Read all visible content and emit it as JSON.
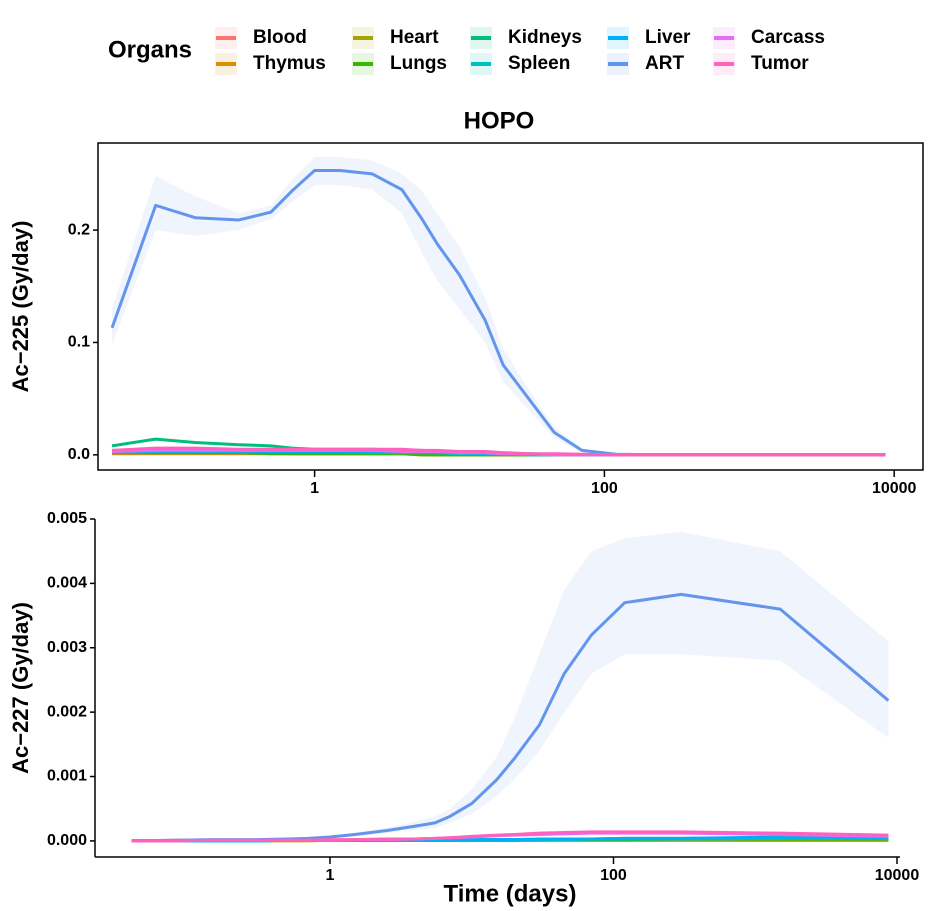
{
  "chart_data": [
    {
      "type": "line",
      "title": "HOPO",
      "y_label": "Ac−225 (Gy/day)",
      "legend_title": "Organs",
      "xscale": "log",
      "ribbon": true,
      "x": [
        0.04,
        0.08,
        0.15,
        0.3,
        0.5,
        0.7,
        1,
        1.5,
        2.5,
        4,
        5.5,
        7,
        10,
        15,
        20,
        30,
        45,
        70,
        120,
        300,
        1500,
        8700
      ],
      "xlim": [
        0.032,
        15800
      ],
      "xticks": [
        1,
        100,
        10000
      ],
      "ylim": [
        -0.0135,
        0.2775
      ],
      "yticks": [
        {
          "value": 0,
          "label": "0.0"
        },
        0.1,
        0.2
      ],
      "series": [
        {
          "name": "Blood",
          "color": "#F8766D",
          "values": [
            0.004,
            0.004,
            0.003,
            0.003,
            0.003,
            0.002,
            0.002,
            0.002,
            0.001,
            0.001,
            0.001,
            0.001,
            0.001,
            0,
            0,
            0,
            0,
            0,
            0,
            0,
            0,
            0
          ]
        },
        {
          "name": "Thymus",
          "color": "#D89000",
          "values": [
            0.001,
            0.001,
            0.001,
            0.001,
            0.001,
            0.001,
            0.001,
            0.001,
            0.001,
            0.001,
            0,
            0,
            0,
            0,
            0,
            0,
            0,
            0,
            0,
            0,
            0,
            0
          ]
        },
        {
          "name": "Heart",
          "color": "#A3A500",
          "values": [
            0.002,
            0.002,
            0.002,
            0.002,
            0.002,
            0.001,
            0.001,
            0.001,
            0.001,
            0.001,
            0.001,
            0,
            0,
            0,
            0,
            0,
            0,
            0,
            0,
            0,
            0,
            0
          ]
        },
        {
          "name": "Lungs",
          "color": "#39B600",
          "values": [
            0.002,
            0.002,
            0.002,
            0.002,
            0.001,
            0.001,
            0.001,
            0.001,
            0.001,
            0.001,
            0,
            0,
            0,
            0,
            0,
            0,
            0,
            0,
            0,
            0,
            0,
            0
          ]
        },
        {
          "name": "Kidneys",
          "color": "#00BF7D",
          "values": [
            0.008,
            0.014,
            0.011,
            0.009,
            0.008,
            0.006,
            0.005,
            0.005,
            0.005,
            0.004,
            0.004,
            0.003,
            0.003,
            0.002,
            0.001,
            0.001,
            0.0005,
            0,
            0,
            0,
            0,
            0
          ]
        },
        {
          "name": "Spleen",
          "color": "#00BFC4",
          "values": [
            0.002,
            0.003,
            0.003,
            0.003,
            0.003,
            0.003,
            0.003,
            0.003,
            0.002,
            0.002,
            0.002,
            0.002,
            0.001,
            0.001,
            0.001,
            0,
            0,
            0,
            0,
            0,
            0,
            0
          ]
        },
        {
          "name": "Liver",
          "color": "#00B0F6",
          "values": [
            0.002,
            0.003,
            0.003,
            0.003,
            0.003,
            0.003,
            0.003,
            0.003,
            0.003,
            0.003,
            0.002,
            0.002,
            0.002,
            0.001,
            0.001,
            0.001,
            0,
            0,
            0,
            0,
            0,
            0
          ]
        },
        {
          "name": "ART",
          "color": "#6495ED",
          "values": [
            0.113,
            0.222,
            0.211,
            0.209,
            0.216,
            0.235,
            0.253,
            0.253,
            0.25,
            0.236,
            0.21,
            0.188,
            0.16,
            0.12,
            0.08,
            0.05,
            0.02,
            0.004,
            0.0005,
            0,
            0,
            0
          ],
          "upper": [
            0.13,
            0.248,
            0.23,
            0.215,
            0.222,
            0.245,
            0.265,
            0.265,
            0.262,
            0.25,
            0.235,
            0.215,
            0.185,
            0.14,
            0.095,
            0.058,
            0.025,
            0.006,
            0.001,
            0,
            0,
            0
          ],
          "lower": [
            0.098,
            0.2,
            0.195,
            0.2,
            0.21,
            0.225,
            0.24,
            0.24,
            0.236,
            0.215,
            0.18,
            0.155,
            0.13,
            0.1,
            0.065,
            0.04,
            0.015,
            0.002,
            0,
            0,
            0,
            0
          ]
        },
        {
          "name": "Carcass",
          "color": "#E76BF3",
          "values": [
            0.003,
            0.004,
            0.004,
            0.004,
            0.004,
            0.004,
            0.004,
            0.004,
            0.004,
            0.003,
            0.003,
            0.003,
            0.002,
            0.002,
            0.001,
            0.001,
            0,
            0,
            0,
            0,
            0,
            0
          ]
        },
        {
          "name": "Tumor",
          "color": "#FF62BC",
          "values": [
            0.004,
            0.006,
            0.006,
            0.005,
            0.005,
            0.005,
            0.005,
            0.005,
            0.005,
            0.005,
            0.004,
            0.004,
            0.003,
            0.003,
            0.002,
            0.001,
            0.001,
            0.0005,
            0,
            0,
            0,
            0
          ]
        }
      ]
    },
    {
      "type": "line",
      "y_label": "Ac−227 (Gy/day)",
      "x_label": "Time (days)",
      "xscale": "log",
      "ribbon": true,
      "x": [
        0.04,
        0.08,
        0.15,
        0.3,
        0.5,
        0.7,
        1,
        1.5,
        2.5,
        4,
        5.5,
        7,
        10,
        15,
        20,
        30,
        45,
        70,
        120,
        300,
        1500,
        8700
      ],
      "xlim": [
        0.022,
        10500
      ],
      "xticks": [
        1,
        100,
        10000
      ],
      "ylim": [
        -0.00025,
        0.005
      ],
      "yticks": [
        {
          "value": 0,
          "label": "0.000"
        },
        0.001,
        0.002,
        0.003,
        0.004,
        0.005
      ],
      "series": [
        {
          "name": "Blood",
          "color": "#F8766D",
          "values": [
            0,
            1e-05,
            1e-05,
            1e-05,
            1e-05,
            1e-05,
            1e-05,
            1e-05,
            1e-05,
            1e-05,
            1e-05,
            1e-05,
            1e-05,
            1e-05,
            1e-05,
            1e-05,
            1e-05,
            1e-05,
            1e-05,
            1e-05,
            1e-05,
            1e-05
          ]
        },
        {
          "name": "Thymus",
          "color": "#D89000",
          "values": [
            0,
            0,
            1e-05,
            1e-05,
            1e-05,
            1e-05,
            1e-05,
            1e-05,
            1e-05,
            1e-05,
            1e-05,
            1e-05,
            1e-05,
            1e-05,
            1e-05,
            1e-05,
            1e-05,
            1e-05,
            1e-05,
            1e-05,
            1e-05,
            1e-05
          ]
        },
        {
          "name": "Heart",
          "color": "#A3A500",
          "values": [
            0,
            0,
            0,
            0,
            0,
            0,
            1e-05,
            1e-05,
            1e-05,
            1e-05,
            1e-05,
            1e-05,
            1e-05,
            1e-05,
            1e-05,
            1e-05,
            2e-05,
            2e-05,
            2e-05,
            2e-05,
            2e-05,
            2e-05
          ]
        },
        {
          "name": "Lungs",
          "color": "#39B600",
          "values": [
            0,
            0,
            0,
            1e-05,
            1e-05,
            1e-05,
            1e-05,
            1e-05,
            1e-05,
            1e-05,
            1e-05,
            1e-05,
            1e-05,
            1e-05,
            1e-05,
            2e-05,
            2e-05,
            2e-05,
            2e-05,
            3e-05,
            3e-05,
            3e-05
          ]
        },
        {
          "name": "Kidneys",
          "color": "#00BF7D",
          "values": [
            0,
            0,
            0,
            0,
            1e-05,
            1e-05,
            1e-05,
            1e-05,
            1e-05,
            1e-05,
            1e-05,
            1e-05,
            2e-05,
            2e-05,
            2e-05,
            2e-05,
            3e-05,
            3e-05,
            4e-05,
            4e-05,
            5e-05,
            5e-05
          ]
        },
        {
          "name": "Spleen",
          "color": "#00BFC4",
          "values": [
            0,
            0,
            0,
            0,
            1e-05,
            1e-05,
            1e-05,
            1e-05,
            1e-05,
            1e-05,
            1e-05,
            1e-05,
            2e-05,
            2e-05,
            2e-05,
            2e-05,
            2e-05,
            3e-05,
            3e-05,
            3e-05,
            4e-05,
            4e-05
          ]
        },
        {
          "name": "Liver",
          "color": "#00B0F6",
          "values": [
            0,
            0,
            0,
            0,
            1e-05,
            1e-05,
            1e-05,
            1e-05,
            1e-05,
            1e-05,
            1e-05,
            2e-05,
            2e-05,
            2e-05,
            2e-05,
            3e-05,
            3e-05,
            3e-05,
            4e-05,
            4e-05,
            6e-05,
            5e-05
          ]
        },
        {
          "name": "ART",
          "color": "#6495ED",
          "values": [
            0,
            1e-05,
            2e-05,
            2e-05,
            3e-05,
            4e-05,
            6e-05,
            0.0001,
            0.00016,
            0.00023,
            0.00028,
            0.00038,
            0.00058,
            0.00095,
            0.00128,
            0.0018,
            0.0026,
            0.0032,
            0.0037,
            0.00383,
            0.0036,
            0.00218
          ],
          "upper": [
            0,
            1e-05,
            2e-05,
            3e-05,
            4e-05,
            5e-05,
            8e-05,
            0.00013,
            0.0002,
            0.0003,
            0.00038,
            0.0005,
            0.0008,
            0.0013,
            0.0019,
            0.0029,
            0.0039,
            0.0045,
            0.0047,
            0.0048,
            0.0045,
            0.0031
          ],
          "lower": [
            0,
            0,
            1e-05,
            1e-05,
            2e-05,
            3e-05,
            4e-05,
            7e-05,
            0.00012,
            0.00017,
            0.0002,
            0.00028,
            0.00042,
            0.0007,
            0.00095,
            0.0014,
            0.002,
            0.0026,
            0.0029,
            0.0029,
            0.0028,
            0.0016
          ]
        },
        {
          "name": "Carcass",
          "color": "#E76BF3",
          "values": [
            0,
            0,
            1e-05,
            1e-05,
            1e-05,
            1e-05,
            1e-05,
            2e-05,
            2e-05,
            3e-05,
            4e-05,
            5e-05,
            6e-05,
            8e-05,
            9e-05,
            0.0001,
            0.00011,
            0.00012,
            0.00012,
            0.00012,
            0.0001,
            7e-05
          ]
        },
        {
          "name": "Tumor",
          "color": "#FF62BC",
          "values": [
            0,
            0,
            1e-05,
            1e-05,
            1e-05,
            1e-05,
            2e-05,
            2e-05,
            3e-05,
            3e-05,
            4e-05,
            5e-05,
            7e-05,
            9e-05,
            0.0001,
            0.00012,
            0.00013,
            0.00014,
            0.00014,
            0.00014,
            0.00012,
            9e-05
          ]
        }
      ]
    }
  ]
}
